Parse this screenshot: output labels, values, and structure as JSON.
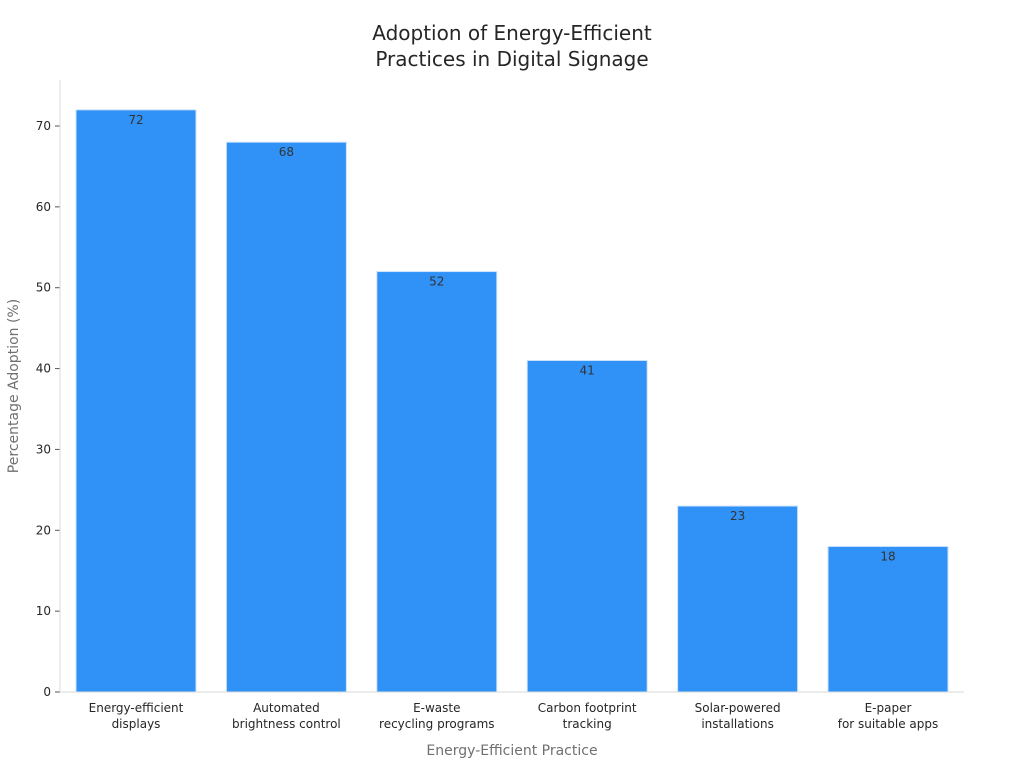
{
  "chart_data": {
    "type": "bar",
    "title_lines": [
      "Adoption of Energy-Efficient",
      "Practices in Digital Signage"
    ],
    "xlabel": "Energy-Efficient Practice",
    "ylabel": "Percentage Adoption (%)",
    "categories": [
      [
        "Energy-efficient",
        "displays"
      ],
      [
        "Automated",
        "brightness control"
      ],
      [
        "E-waste",
        "recycling programs"
      ],
      [
        "Carbon footprint",
        "tracking"
      ],
      [
        "Solar-powered",
        "installations"
      ],
      [
        "E-paper",
        "for suitable apps"
      ]
    ],
    "values": [
      72,
      68,
      52,
      41,
      23,
      18
    ],
    "value_labels": [
      "72",
      "68",
      "52",
      "41",
      "23",
      "18"
    ],
    "ylim": [
      0,
      76
    ],
    "yticks": [
      0,
      10,
      20,
      30,
      40,
      50,
      60,
      70
    ],
    "ytick_labels": [
      "0",
      "10",
      "20",
      "30",
      "40",
      "50",
      "60",
      "70"
    ],
    "grid": false,
    "legend": "none",
    "bar_color": "#3092f7"
  }
}
